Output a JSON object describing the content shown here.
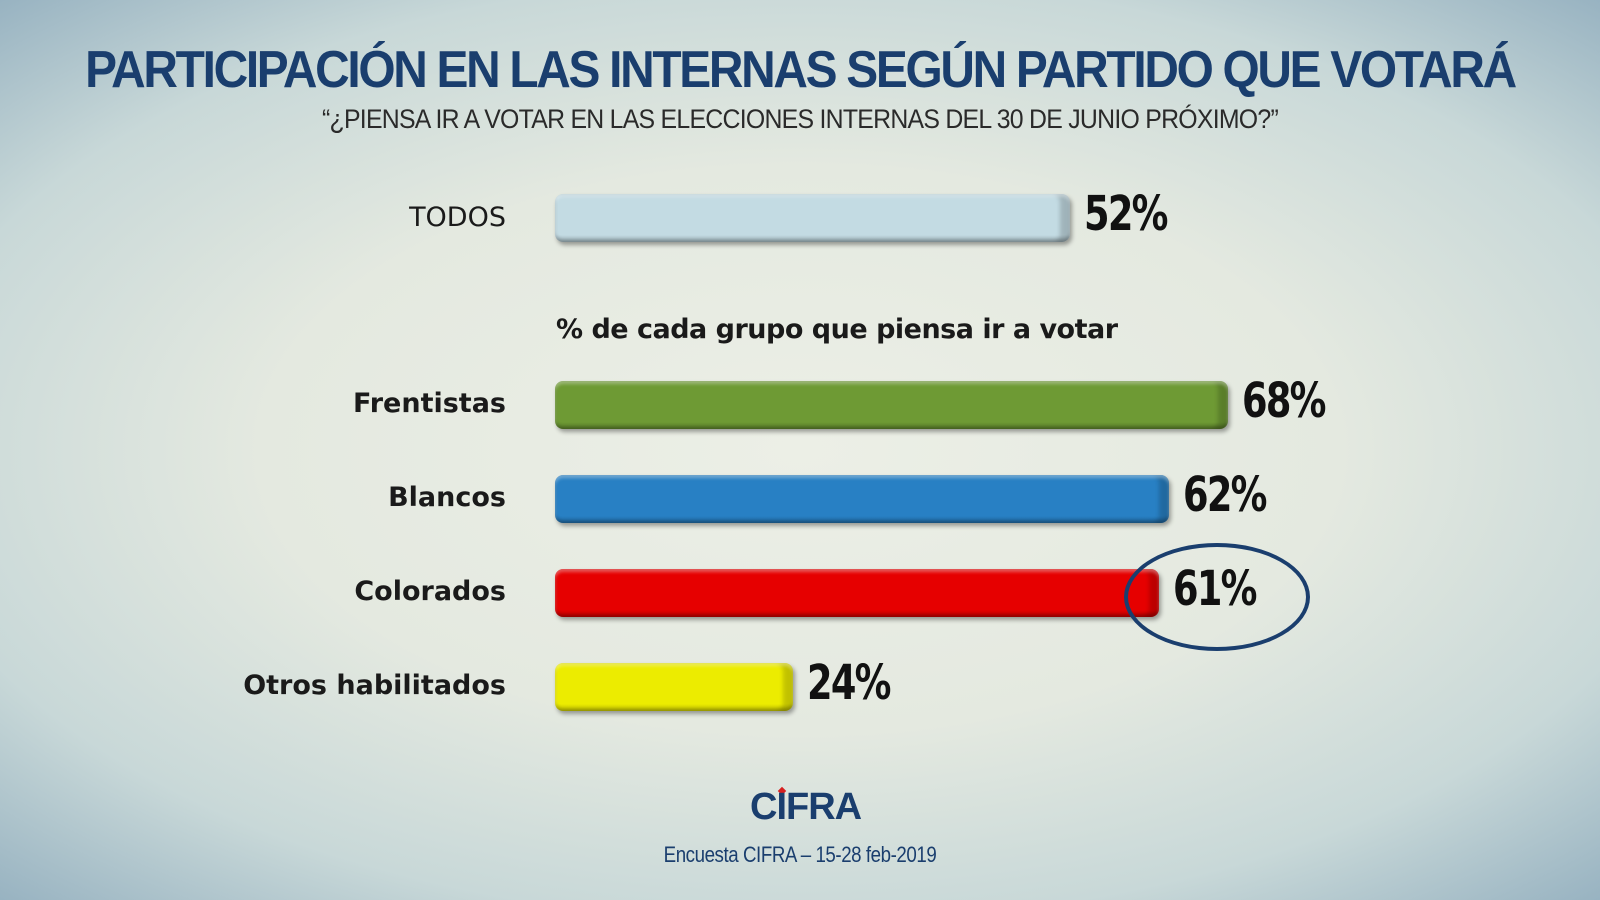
{
  "header": {
    "title": "PARTICIPACIÓN EN LAS INTERNAS SEGÚN PARTIDO QUE VOTARÁ",
    "subtitle": "“¿PIENSA IR A VOTAR EN LAS ELECCIONES INTERNAS DEL 30 DE JUNIO PRÓXIMO?”"
  },
  "footer": {
    "logo_text": "CIFRA",
    "source": "Encuesta CIFRA – 15-28 feb-2019"
  },
  "chart_data": {
    "type": "bar",
    "orientation": "horizontal",
    "title": "PARTICIPACIÓN EN LAS INTERNAS SEGÚN PARTIDO QUE VOTARÁ",
    "subtitle": "“¿PIENSA IR A VOTAR EN LAS ELECCIONES INTERNAS DEL 30 DE JUNIO PRÓXIMO?”",
    "section_label": "% de cada grupo que piensa ir a votar",
    "unit": "%",
    "xlim": [
      0,
      100
    ],
    "grid": false,
    "highlighted": "Colorados",
    "bars": [
      {
        "category": "TODOS",
        "value": 52,
        "label": "52%",
        "color": "#c3dbe3"
      },
      {
        "category": "Frentistas",
        "value": 68,
        "label": "68%",
        "color": "#6e9a34"
      },
      {
        "category": "Blancos",
        "value": 62,
        "label": "62%",
        "color": "#2880c4"
      },
      {
        "category": "Colorados",
        "value": 61,
        "label": "61%",
        "color": "#e60000"
      },
      {
        "category": "Otros habilitados",
        "value": 24,
        "label": "24%",
        "color": "#ecec00"
      }
    ]
  }
}
